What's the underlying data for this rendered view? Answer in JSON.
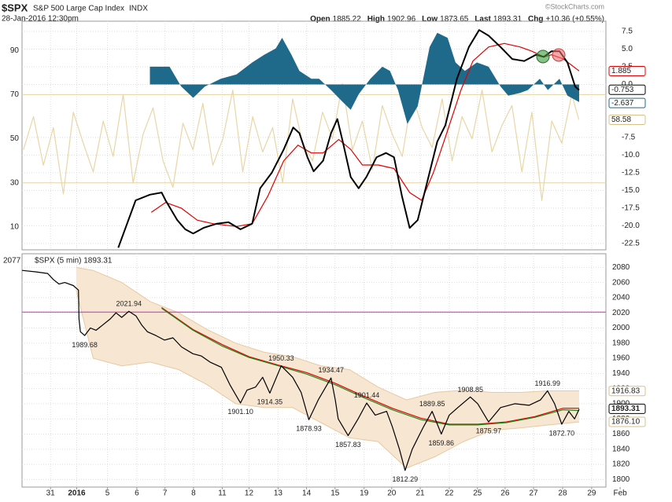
{
  "header": {
    "symbol": "$SPX",
    "name": "S&P 500 Large Cap Index",
    "exchange": "INDX",
    "datetime": "28-Jan-2016 12:30pm",
    "watermark": "©StockCharts.com",
    "quote": [
      {
        "label": "Open",
        "value": "1885.22"
      },
      {
        "label": "High",
        "value": "1902.96"
      },
      {
        "label": "Low",
        "value": "1873.65"
      },
      {
        "label": "Last",
        "value": "1893.31"
      },
      {
        "label": "Chg",
        "value": "+10.36 (+0.55%)"
      }
    ]
  },
  "chart_data": [
    {
      "type": "line",
      "xlim": [
        -1,
        19.5
      ],
      "ylim": [
        -0.3,
        103.2
      ],
      "yticks": [
        10,
        30,
        50,
        70,
        90
      ],
      "y2lim": [
        -23.4,
        8.94
      ],
      "y2ticks": [
        7.5,
        {
          "value": 5,
          "label": "5.0"
        },
        2.5,
        {
          "value": 0,
          "label": "0.0"
        },
        -7.5,
        {
          "value": -10,
          "label": "-10.0"
        },
        -12.5,
        {
          "value": -15,
          "label": "-15.0"
        },
        -17.5,
        {
          "value": -20,
          "label": "-20.0"
        },
        -22.5
      ],
      "reference_lines": [
        30,
        70
      ],
      "reference_color": "#e6d3a3",
      "grid": true,
      "series": [
        {
          "style": "line",
          "axis": "y",
          "color": "#e8d6a6",
          "x": [
            -0.95,
            -0.6,
            -0.25,
            0.1,
            0.45,
            0.8,
            1.15,
            1.5,
            1.85,
            2.2,
            2.55,
            2.9,
            3.25,
            3.6,
            3.95,
            4.3,
            4.65,
            5.0,
            5.35,
            5.7,
            6.05,
            6.4,
            6.75,
            7.1,
            7.45,
            7.8,
            8.15,
            8.5,
            8.85,
            9.2,
            9.55,
            9.9,
            10.25,
            10.6,
            10.95,
            11.3,
            11.65,
            12.0,
            12.35,
            12.7,
            13.05,
            13.4,
            13.75,
            14.1,
            14.45,
            14.8,
            15.15,
            15.5,
            15.85,
            16.2,
            16.55,
            16.9,
            17.25,
            17.6,
            17.95,
            18.3,
            18.55
          ],
          "values": [
            45,
            60,
            38,
            55,
            25,
            62,
            48,
            35,
            58,
            42,
            70,
            30,
            52,
            64,
            40,
            28,
            57,
            45,
            66,
            38,
            50,
            72,
            35,
            60,
            44,
            55,
            30,
            68,
            48,
            40,
            62,
            50,
            75,
            45,
            58,
            36,
            65,
            52,
            42,
            70,
            55,
            46,
            68,
            40,
            60,
            50,
            72,
            44,
            56,
            65,
            35,
            62,
            22,
            58,
            48,
            70,
            58.6
          ]
        },
        {
          "style": "area",
          "axis": "y2",
          "color": "#1f6a8a",
          "x": [
            3.49,
            4.18,
            4.59,
            5.01,
            5.42,
            5.98,
            6.53,
            7.08,
            7.5,
            7.91,
            8.13,
            8.46,
            8.74,
            9.16,
            9.43,
            9.85,
            10.26,
            10.54,
            10.82,
            11.23,
            11.65,
            11.92,
            12.2,
            12.53,
            12.89,
            13.31,
            13.58,
            13.94,
            14.22,
            14.55,
            14.97,
            15.38,
            15.8,
            16.07,
            16.49,
            16.76,
            17.18,
            17.46,
            17.87,
            18.15,
            18.56
          ],
          "values": [
            2.5,
            2.5,
            -0.3,
            -1.9,
            -0.3,
            0.8,
            1.4,
            3.1,
            4.2,
            5.1,
            6.6,
            4.2,
            1.9,
            0.8,
            0.8,
            -0.8,
            -2.5,
            -3.6,
            -1.4,
            0.8,
            2.5,
            1.9,
            -0.8,
            -5.6,
            -3.1,
            5.3,
            7.3,
            6.6,
            3.1,
            1.9,
            3.1,
            2.5,
            -0.3,
            -1.6,
            -1.2,
            -0.8,
            0.8,
            -0.8,
            0.8,
            -1.6,
            -2.5
          ]
        },
        {
          "style": "line",
          "axis": "y2",
          "color": "#e00000",
          "x": [
            3.54,
            4.04,
            4.59,
            5.15,
            5.7,
            6.53,
            7.08,
            7.63,
            8.19,
            8.69,
            9.16,
            9.57,
            10.12,
            10.54,
            10.95,
            11.51,
            12.06,
            12.61,
            13.03,
            13.44,
            13.86,
            14.41,
            14.83,
            15.38,
            15.93,
            16.49,
            16.9,
            17.32,
            17.59,
            18.01,
            18.56
          ],
          "values": [
            -18.1,
            -16.7,
            -17.5,
            -19.2,
            -19.7,
            -20.1,
            -19.7,
            -15.8,
            -10.8,
            -8.6,
            -9.7,
            -9.7,
            -7.8,
            -9.2,
            -11.4,
            -11.4,
            -11.9,
            -15.3,
            -16.4,
            -12.5,
            -7.5,
            -0.8,
            3.3,
            5.3,
            5.8,
            5.3,
            4.7,
            3.9,
            4.2,
            3.6,
            1.9
          ]
        },
        {
          "style": "line",
          "axis": "y2",
          "color": "#000000",
          "x": [
            2.38,
            2.99,
            3.49,
            3.9,
            4.04,
            4.45,
            4.73,
            5.01,
            5.37,
            5.84,
            6.25,
            6.67,
            7.08,
            7.36,
            7.77,
            8.19,
            8.52,
            8.74,
            9.02,
            9.24,
            9.57,
            9.85,
            10.07,
            10.26,
            10.54,
            10.82,
            11.09,
            11.45,
            11.78,
            12.06,
            12.34,
            12.61,
            12.89,
            13.17,
            13.58,
            13.86,
            14.27,
            14.69,
            15.05,
            15.38,
            15.8,
            16.21,
            16.63,
            17.04,
            17.32,
            17.59,
            17.87,
            18.15,
            18.42,
            18.56
          ],
          "values": [
            -23.1,
            -16.4,
            -15.6,
            -15.3,
            -16.4,
            -19.2,
            -20.5,
            -21.1,
            -20.3,
            -19.7,
            -19.5,
            -20.5,
            -19.7,
            -14.7,
            -12.5,
            -9.2,
            -6.1,
            -6.9,
            -10.3,
            -12.3,
            -10.8,
            -6.9,
            -4.9,
            -8.1,
            -13.1,
            -14.7,
            -13.1,
            -10.3,
            -9.7,
            -10.3,
            -15.8,
            -20.3,
            -19.2,
            -14.7,
            -8.1,
            -5.8,
            0.8,
            5.3,
            7.7,
            6.9,
            5.3,
            3.6,
            3.3,
            4.2,
            3.9,
            4.7,
            4.7,
            3.1,
            -0.3,
            -0.8
          ]
        }
      ],
      "last_value_labels": [
        {
          "axis": "y2",
          "value": 1.885,
          "label": "1.885",
          "color": "#e00000"
        },
        {
          "axis": "y2",
          "value": -0.753,
          "label": "-0.753",
          "color": "#000000"
        },
        {
          "axis": "y2",
          "value": -2.637,
          "label": "-2.637",
          "color": "#1f6a8a"
        },
        {
          "axis": "y",
          "value": 58.58,
          "label": "58.58",
          "color": "#d9c08a"
        }
      ]
    },
    {
      "type": "line",
      "legend": "$SPX (5 min) 1893.31",
      "start_label": "2077",
      "xlim": [
        -1,
        19.5
      ],
      "ylim": [
        1790,
        2098
      ],
      "grid": true,
      "yticks": [
        1800,
        1820,
        1840,
        1860,
        1880,
        1900,
        1920,
        1940,
        1960,
        1980,
        2000,
        2020,
        2040,
        2060,
        2080
      ],
      "xticks": [
        {
          "value": 0,
          "label": "31"
        },
        {
          "value": 0.92,
          "label": "2016"
        },
        {
          "value": 2,
          "label": "5"
        },
        {
          "value": 3.03,
          "label": "6"
        },
        {
          "value": 4.02,
          "label": "7"
        },
        {
          "value": 5.02,
          "label": "8"
        },
        {
          "value": 6.03,
          "label": "11"
        },
        {
          "value": 6.97,
          "label": "12"
        },
        {
          "value": 7.99,
          "label": "13"
        },
        {
          "value": 8.99,
          "label": "14"
        },
        {
          "value": 9.99,
          "label": "15"
        },
        {
          "value": 11.01,
          "label": "19"
        },
        {
          "value": 11.98,
          "label": "20"
        },
        {
          "value": 12.98,
          "label": "21"
        },
        {
          "value": 14.0,
          "label": "22"
        },
        {
          "value": 14.99,
          "label": "25"
        },
        {
          "value": 15.96,
          "label": "26"
        },
        {
          "value": 16.96,
          "label": "27"
        },
        {
          "value": 17.98,
          "label": "28"
        },
        {
          "value": 19.0,
          "label": "29"
        },
        {
          "value": 20.0,
          "label": "Feb"
        }
      ],
      "reference_line": 2021,
      "reference_color": "#d81fd8",
      "band": {
        "color": "#f7e6d2",
        "x": [
          0.9,
          1.5,
          2.5,
          3.5,
          4.5,
          5.5,
          6.5,
          7.5,
          8.5,
          9.5,
          10.5,
          11.5,
          12.5,
          13.5,
          14.5,
          15.5,
          16.5,
          17.5,
          18.56
        ],
        "upper": [
          2080,
          2076,
          2060,
          2035,
          2020,
          1998,
          1980,
          1968,
          1962,
          1950,
          1945,
          1922,
          1905,
          1915,
          1918,
          1915,
          1915,
          1917,
          1917
        ],
        "lower": [
          2050,
          1960,
          1950,
          1955,
          1945,
          1925,
          1900,
          1895,
          1895,
          1875,
          1855,
          1850,
          1815,
          1830,
          1850,
          1865,
          1868,
          1872,
          1876
        ]
      },
      "series": [
        {
          "style": "line",
          "color": "#e00000",
          "x": [
            3.9,
            5.0,
            6.03,
            6.97,
            8.0,
            9.0,
            10.0,
            11.0,
            12.0,
            13.0,
            14.0,
            15.0,
            16.0,
            17.0,
            18.0,
            18.56
          ],
          "values": [
            2027,
            1998,
            1978,
            1962,
            1951,
            1941,
            1927,
            1910,
            1894,
            1881,
            1873,
            1873,
            1876,
            1883,
            1894,
            1894
          ]
        },
        {
          "style": "line",
          "color": "#1a8a1a",
          "x": [
            3.9,
            5.0,
            6.03,
            6.97,
            8.0,
            9.0,
            10.0,
            11.0,
            12.0,
            13.0,
            14.0,
            15.0,
            16.0,
            17.0,
            18.0,
            18.56
          ],
          "values": [
            2026,
            1997,
            1976,
            1961,
            1950,
            1939,
            1925,
            1908,
            1892,
            1879,
            1872,
            1872,
            1875,
            1882,
            1892,
            1891
          ]
        },
        {
          "style": "line",
          "color": "#000000",
          "x": [
            -1.0,
            -0.5,
            -0.1,
            0.1,
            0.3,
            0.5,
            0.8,
            0.98,
            1.0,
            1.05,
            1.2,
            1.4,
            1.6,
            1.9,
            2.1,
            2.3,
            2.5,
            2.75,
            3.0,
            3.2,
            3.4,
            3.7,
            4.0,
            4.3,
            4.6,
            5.0,
            5.3,
            5.6,
            6.0,
            6.3,
            6.67,
            6.9,
            7.2,
            7.45,
            7.7,
            8.1,
            8.5,
            8.8,
            9.07,
            9.4,
            9.85,
            10.0,
            10.1,
            10.45,
            10.8,
            11.1,
            11.4,
            11.8,
            12.0,
            12.25,
            12.45,
            12.7,
            12.9,
            13.1,
            13.4,
            13.72,
            14.0,
            14.3,
            14.74,
            15.0,
            15.38,
            15.8,
            16.3,
            16.8,
            17.2,
            17.45,
            17.7,
            17.95,
            18.2,
            18.4,
            18.56
          ],
          "values": [
            2076,
            2074,
            2072,
            2064,
            2058,
            2060,
            2056,
            2050,
            2012,
            1995,
            1990,
            2000,
            1997,
            2006,
            2012,
            2020,
            2014,
            2022,
            2016,
            2004,
            1995,
            1990,
            1984,
            1987,
            1975,
            1966,
            1963,
            1955,
            1948,
            1925,
            1901,
            1918,
            1922,
            1935,
            1914,
            1950,
            1935,
            1915,
            1879,
            1905,
            1934,
            1905,
            1880,
            1858,
            1880,
            1901,
            1885,
            1890,
            1870,
            1840,
            1812,
            1840,
            1855,
            1870,
            1890,
            1860,
            1885,
            1895,
            1909,
            1900,
            1876,
            1895,
            1900,
            1898,
            1905,
            1917,
            1900,
            1873,
            1890,
            1880,
            1893
          ]
        }
      ],
      "annotations": [
        {
          "x": 1.2,
          "value": 1989.68,
          "label": "1989.68"
        },
        {
          "x": 2.75,
          "value": 2021.94,
          "label": "2021.94"
        },
        {
          "x": 6.67,
          "value": 1901.1,
          "label": "1901.10"
        },
        {
          "x": 7.7,
          "value": 1914.35,
          "label": "1914.35"
        },
        {
          "x": 8.1,
          "value": 1950.33,
          "label": "1950.33"
        },
        {
          "x": 9.07,
          "value": 1878.93,
          "label": "1878.93"
        },
        {
          "x": 9.85,
          "value": 1934.47,
          "label": "1934.47"
        },
        {
          "x": 10.45,
          "value": 1857.83,
          "label": "1857.83"
        },
        {
          "x": 11.1,
          "value": 1901.44,
          "label": "1901.44"
        },
        {
          "x": 12.45,
          "value": 1812.29,
          "label": "1812.29"
        },
        {
          "x": 13.4,
          "value": 1889.85,
          "label": "1889.85"
        },
        {
          "x": 13.72,
          "value": 1859.86,
          "label": "1859.86"
        },
        {
          "x": 14.74,
          "value": 1908.85,
          "label": "1908.85"
        },
        {
          "x": 15.38,
          "value": 1875.97,
          "label": "1875.97"
        },
        {
          "x": 17.45,
          "value": 1916.99,
          "label": "1916.99"
        },
        {
          "x": 17.95,
          "value": 1872.7,
          "label": "1872.70"
        }
      ],
      "last_value_labels": [
        {
          "value": 1916.83,
          "label": "1916.83",
          "color": "#d9c08a"
        },
        {
          "value": 1893.31,
          "label": "1893.31",
          "color": "#000000"
        },
        {
          "value": 1876.1,
          "label": "1876.10",
          "color": "#d9c08a"
        }
      ]
    }
  ]
}
